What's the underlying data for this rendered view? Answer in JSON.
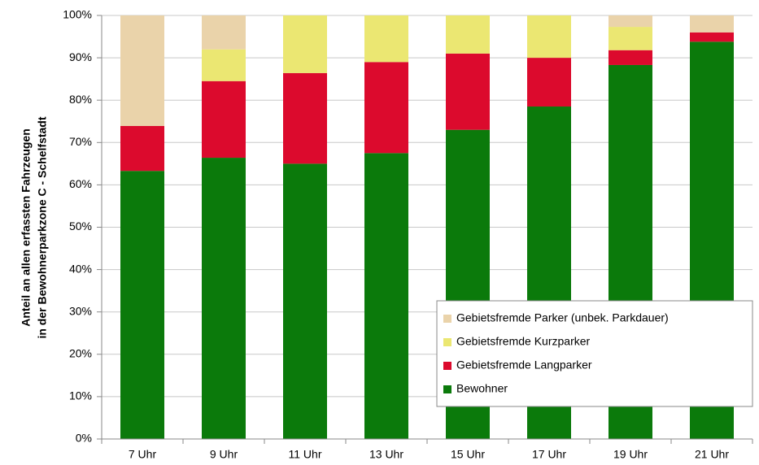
{
  "chart_data": {
    "type": "stacked_bar",
    "ylabel": [
      "Anteil an allen erfassten Fahrzeugen",
      "in der Bewohnerparkzone C - Schelfstadt"
    ],
    "categories": [
      "7 Uhr",
      "9 Uhr",
      "11 Uhr",
      "13 Uhr",
      "15 Uhr",
      "17 Uhr",
      "19 Uhr",
      "21 Uhr"
    ],
    "series": [
      {
        "name": "Bewohner",
        "color": "#0b7a0b",
        "values": [
          63.3,
          66.4,
          65.0,
          67.5,
          73.0,
          78.5,
          88.3,
          93.8
        ]
      },
      {
        "name": "Gebietsfremde Langparker",
        "color": "#dc0a2d",
        "values": [
          10.6,
          18.1,
          21.4,
          21.5,
          18.0,
          11.5,
          3.5,
          2.2
        ]
      },
      {
        "name": "Gebietsfremde Kurzparker",
        "color": "#ebe772",
        "values": [
          0,
          7.5,
          13.6,
          11.0,
          9.0,
          10.0,
          5.5,
          0
        ]
      },
      {
        "name": "Gebietsfremde Parker (unbek. Parkdauer)",
        "color": "#ead3aa",
        "values": [
          26.1,
          8.0,
          0,
          0,
          0,
          0,
          2.7,
          4.0
        ]
      }
    ],
    "ylim": [
      0,
      100
    ],
    "yticks": [
      {
        "value": 0,
        "label": "0%"
      },
      {
        "value": 10,
        "label": "10%"
      },
      {
        "value": 20,
        "label": "20%"
      },
      {
        "value": 30,
        "label": "30%"
      },
      {
        "value": 40,
        "label": "40%"
      },
      {
        "value": 50,
        "label": "50%"
      },
      {
        "value": 60,
        "label": "60%"
      },
      {
        "value": 70,
        "label": "70%"
      },
      {
        "value": 80,
        "label": "80%"
      },
      {
        "value": 90,
        "label": "90%"
      },
      {
        "value": 100,
        "label": "100%"
      }
    ],
    "grid": true,
    "legend": "lower right"
  }
}
